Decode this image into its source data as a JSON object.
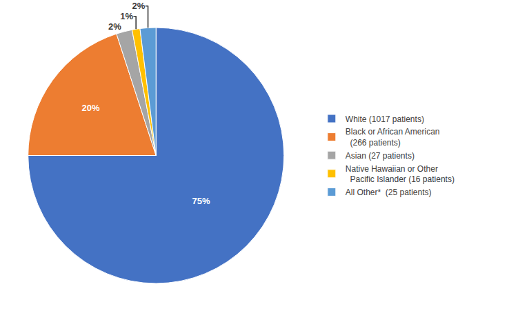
{
  "chart_data": {
    "type": "pie",
    "categories": [
      "White (1017 patients)",
      "Black or African American\n  (266 patients)",
      "Asian (27 patients)",
      "Native Hawaiian or Other\n  Pacific Islander (16 patients)",
      "All Other*  (25 patients)"
    ],
    "values": [
      75,
      20,
      2,
      1,
      2
    ],
    "value_labels": [
      "75%",
      "20%",
      "2%",
      "1%",
      "2%"
    ],
    "data_labels": true,
    "colors": [
      "#4472C4",
      "#ED7D31",
      "#A5A5A5",
      "#FFC000",
      "#5B9BD5"
    ],
    "legend": "right"
  }
}
